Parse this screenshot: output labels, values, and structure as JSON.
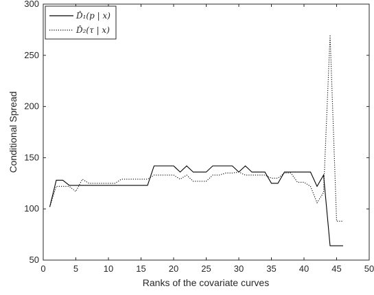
{
  "chart_data": {
    "type": "line",
    "xlabel": "Ranks of the covariate curves",
    "ylabel": "Conditional Spread",
    "xlim": [
      0,
      50
    ],
    "ylim": [
      50,
      300
    ],
    "xticks": [
      0,
      5,
      10,
      15,
      20,
      25,
      30,
      35,
      40,
      45,
      50
    ],
    "yticks": [
      50,
      100,
      150,
      200,
      250,
      300
    ],
    "grid": false,
    "legend_position": "top-left",
    "series": [
      {
        "name": "D̂₁(p | x)",
        "style": "solid",
        "color": "#000000",
        "x": [
          1,
          2,
          3,
          4,
          5,
          6,
          7,
          8,
          9,
          10,
          11,
          12,
          13,
          14,
          15,
          16,
          17,
          18,
          19,
          20,
          21,
          22,
          23,
          24,
          25,
          26,
          27,
          28,
          29,
          30,
          31,
          32,
          33,
          34,
          35,
          36,
          37,
          38,
          39,
          40,
          41,
          42,
          43,
          44,
          45,
          46
        ],
        "y": [
          102,
          128,
          128,
          123,
          123,
          123,
          123,
          123,
          123,
          123,
          123,
          123,
          123,
          123,
          123,
          123,
          142,
          142,
          142,
          142,
          136,
          142,
          136,
          136,
          136,
          142,
          142,
          142,
          142,
          136,
          142,
          136,
          136,
          136,
          125,
          125,
          136,
          136,
          136,
          136,
          136,
          122,
          133,
          64,
          64,
          64
        ]
      },
      {
        "name": "D̂₂(τ | x)",
        "style": "dotted",
        "color": "#000000",
        "x": [
          1,
          2,
          3,
          4,
          5,
          6,
          7,
          8,
          9,
          10,
          11,
          12,
          13,
          14,
          15,
          16,
          17,
          18,
          19,
          20,
          21,
          22,
          23,
          24,
          25,
          26,
          27,
          28,
          29,
          30,
          31,
          32,
          33,
          34,
          35,
          36,
          37,
          38,
          39,
          40,
          41,
          42,
          43,
          44,
          45,
          46
        ],
        "y": [
          102,
          122,
          122,
          122,
          117,
          129,
          125,
          125,
          125,
          125,
          125,
          129,
          129,
          129,
          129,
          129,
          133,
          133,
          133,
          133,
          129,
          133,
          127,
          127,
          127,
          133,
          133,
          135,
          135,
          136,
          133,
          133,
          133,
          133,
          130,
          130,
          135,
          135,
          126,
          126,
          122,
          106,
          116,
          270,
          88,
          88
        ]
      }
    ]
  }
}
